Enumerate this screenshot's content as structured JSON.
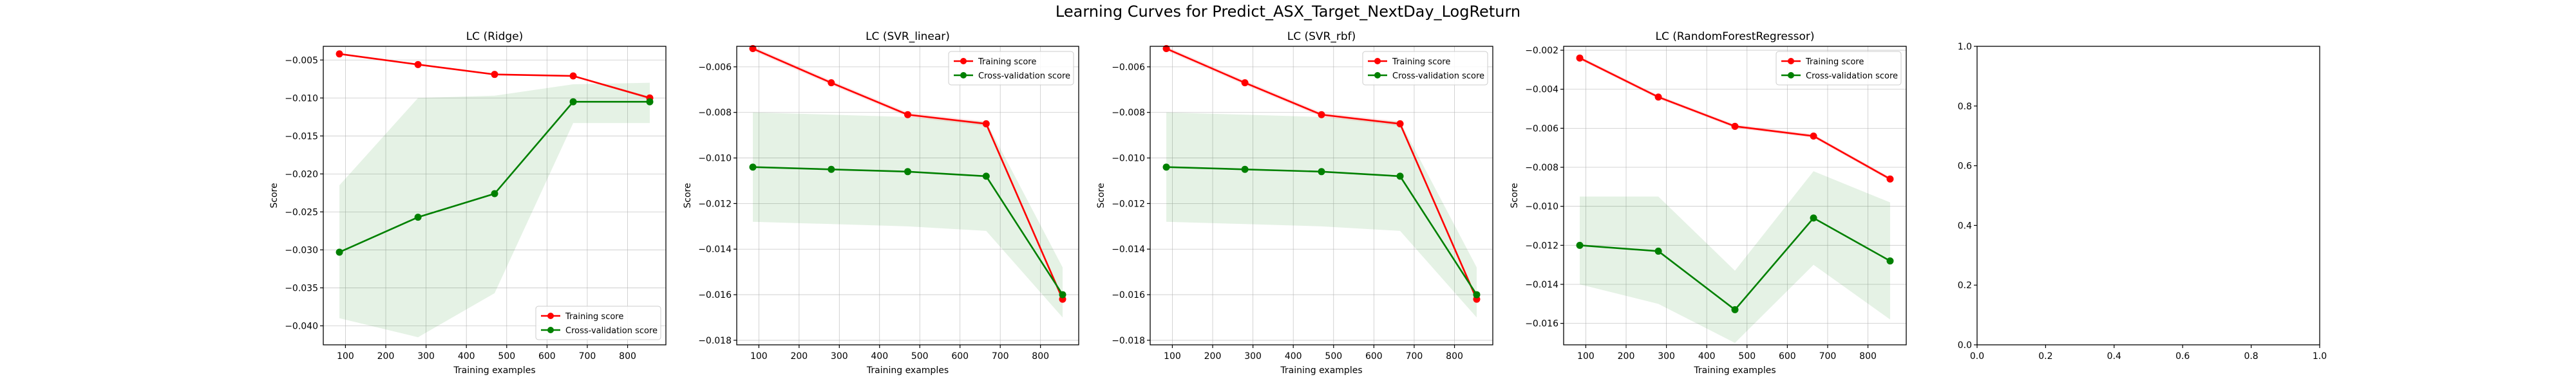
{
  "figure": {
    "suptitle": "Learning Curves for Predict_ASX_Target_NextDay_LogReturn"
  },
  "chart_data": [
    {
      "type": "line",
      "title": "LC (Ridge)",
      "xlabel": "Training examples",
      "ylabel": "Score",
      "x": [
        85,
        280,
        470,
        665,
        855
      ],
      "xlim": [
        45,
        895
      ],
      "ylim": [
        -0.0425,
        -0.0032
      ],
      "xticks": [
        100,
        200,
        300,
        400,
        500,
        600,
        700,
        800
      ],
      "yticks": [
        -0.04,
        -0.035,
        -0.03,
        -0.025,
        -0.02,
        -0.015,
        -0.01,
        -0.005
      ],
      "ytick_labels": [
        "−0.040",
        "−0.035",
        "−0.030",
        "−0.025",
        "−0.020",
        "−0.015",
        "−0.010",
        "−0.005"
      ],
      "grid": true,
      "legend_position": "lower-right",
      "series": [
        {
          "name": "Training score",
          "color": "#ff0000",
          "values": [
            -0.0042,
            -0.0056,
            -0.0069,
            -0.0071,
            -0.01
          ],
          "band_lower": [
            -0.0043,
            -0.0057,
            -0.007,
            -0.0072,
            -0.0102
          ],
          "band_upper": [
            -0.0041,
            -0.0055,
            -0.0068,
            -0.007,
            -0.0098
          ]
        },
        {
          "name": "Cross-validation score",
          "color": "#008000",
          "values": [
            -0.0303,
            -0.0257,
            -0.0226,
            -0.0105,
            -0.0105
          ],
          "band_lower": [
            -0.039,
            -0.0415,
            -0.0357,
            -0.0133,
            -0.0133
          ],
          "band_upper": [
            -0.0215,
            -0.01,
            -0.0097,
            -0.0082,
            -0.008
          ]
        }
      ]
    },
    {
      "type": "line",
      "title": "LC (SVR_linear)",
      "xlabel": "Training examples",
      "ylabel": "Score",
      "x": [
        85,
        280,
        470,
        665,
        855
      ],
      "xlim": [
        45,
        895
      ],
      "ylim": [
        -0.0182,
        -0.0051
      ],
      "xticks": [
        100,
        200,
        300,
        400,
        500,
        600,
        700,
        800
      ],
      "yticks": [
        -0.018,
        -0.016,
        -0.014,
        -0.012,
        -0.01,
        -0.008,
        -0.006
      ],
      "ytick_labels": [
        "−0.018",
        "−0.016",
        "−0.014",
        "−0.012",
        "−0.010",
        "−0.008",
        "−0.006"
      ],
      "grid": true,
      "legend_position": "upper-right",
      "series": [
        {
          "name": "Training score",
          "color": "#ff0000",
          "values": [
            -0.0052,
            -0.0067,
            -0.0081,
            -0.0085,
            -0.0162
          ],
          "band_lower": [
            -0.0053,
            -0.0068,
            -0.0082,
            -0.0086,
            -0.0163
          ],
          "band_upper": [
            -0.0051,
            -0.0066,
            -0.008,
            -0.0084,
            -0.0161
          ]
        },
        {
          "name": "Cross-validation score",
          "color": "#008000",
          "values": [
            -0.0104,
            -0.0105,
            -0.0106,
            -0.0108,
            -0.016
          ],
          "band_lower": [
            -0.0128,
            -0.0129,
            -0.013,
            -0.0132,
            -0.017
          ],
          "band_upper": [
            -0.008,
            -0.0081,
            -0.0082,
            -0.0084,
            -0.0148
          ]
        }
      ]
    },
    {
      "type": "line",
      "title": "LC (SVR_rbf)",
      "xlabel": "Training examples",
      "ylabel": "Score",
      "x": [
        85,
        280,
        470,
        665,
        855
      ],
      "xlim": [
        45,
        895
      ],
      "ylim": [
        -0.0182,
        -0.0051
      ],
      "xticks": [
        100,
        200,
        300,
        400,
        500,
        600,
        700,
        800
      ],
      "yticks": [
        -0.018,
        -0.016,
        -0.014,
        -0.012,
        -0.01,
        -0.008,
        -0.006
      ],
      "ytick_labels": [
        "−0.018",
        "−0.016",
        "−0.014",
        "−0.012",
        "−0.010",
        "−0.008",
        "−0.006"
      ],
      "grid": true,
      "legend_position": "upper-right",
      "series": [
        {
          "name": "Training score",
          "color": "#ff0000",
          "values": [
            -0.0052,
            -0.0067,
            -0.0081,
            -0.0085,
            -0.0162
          ],
          "band_lower": [
            -0.0053,
            -0.0068,
            -0.0082,
            -0.0086,
            -0.0163
          ],
          "band_upper": [
            -0.0051,
            -0.0066,
            -0.008,
            -0.0084,
            -0.0161
          ]
        },
        {
          "name": "Cross-validation score",
          "color": "#008000",
          "values": [
            -0.0104,
            -0.0105,
            -0.0106,
            -0.0108,
            -0.016
          ],
          "band_lower": [
            -0.0128,
            -0.0129,
            -0.013,
            -0.0132,
            -0.017
          ],
          "band_upper": [
            -0.008,
            -0.0081,
            -0.0082,
            -0.0084,
            -0.0148
          ]
        }
      ]
    },
    {
      "type": "line",
      "title": "LC (RandomForestRegressor)",
      "xlabel": "Training examples",
      "ylabel": "Score",
      "x": [
        85,
        280,
        470,
        665,
        855
      ],
      "xlim": [
        45,
        895
      ],
      "ylim": [
        -0.0171,
        -0.0018
      ],
      "xticks": [
        100,
        200,
        300,
        400,
        500,
        600,
        700,
        800
      ],
      "yticks": [
        -0.016,
        -0.014,
        -0.012,
        -0.01,
        -0.008,
        -0.006,
        -0.004,
        -0.002
      ],
      "ytick_labels": [
        "−0.016",
        "−0.014",
        "−0.012",
        "−0.010",
        "−0.008",
        "−0.006",
        "−0.004",
        "−0.002"
      ],
      "grid": true,
      "legend_position": "upper-right",
      "series": [
        {
          "name": "Training score",
          "color": "#ff0000",
          "values": [
            -0.0024,
            -0.0044,
            -0.0059,
            -0.0064,
            -0.0086
          ],
          "band_lower": [
            -0.0025,
            -0.0045,
            -0.006,
            -0.0065,
            -0.0087
          ],
          "band_upper": [
            -0.0023,
            -0.0043,
            -0.0058,
            -0.0063,
            -0.0085
          ]
        },
        {
          "name": "Cross-validation score",
          "color": "#008000",
          "values": [
            -0.012,
            -0.0123,
            -0.0153,
            -0.0106,
            -0.0128
          ],
          "band_lower": [
            -0.014,
            -0.015,
            -0.017,
            -0.013,
            -0.0158
          ],
          "band_upper": [
            -0.0095,
            -0.0095,
            -0.0133,
            -0.0082,
            -0.0098
          ]
        }
      ]
    },
    {
      "type": "line",
      "title": "",
      "xlabel": "",
      "ylabel": "",
      "x": [],
      "xlim": [
        0,
        1
      ],
      "ylim": [
        0,
        1
      ],
      "xticks": [
        0.0,
        0.2,
        0.4,
        0.6,
        0.8,
        1.0
      ],
      "yticks": [
        0.0,
        0.2,
        0.4,
        0.6,
        0.8,
        1.0
      ],
      "xtick_labels": [
        "0.0",
        "0.2",
        "0.4",
        "0.6",
        "0.8",
        "1.0"
      ],
      "ytick_labels": [
        "0.0",
        "0.2",
        "0.4",
        "0.6",
        "0.8",
        "1.0"
      ],
      "grid": false,
      "series": []
    }
  ]
}
